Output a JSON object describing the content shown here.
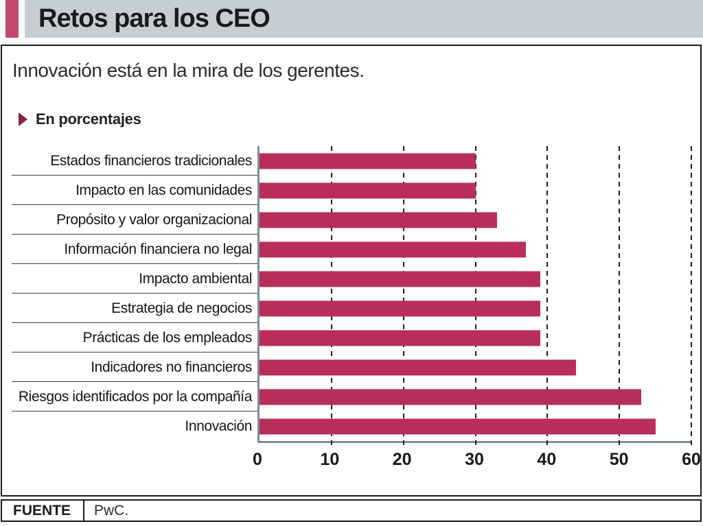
{
  "header": {
    "title": "Retos para los CEO"
  },
  "subtitle": "Innovación está en la mira de los gerentes.",
  "legend": {
    "label": "En porcentajes"
  },
  "chart_data": {
    "type": "bar",
    "orientation": "horizontal",
    "title": "Retos para los CEO",
    "subtitle": "Innovación está en la mira de los gerentes.",
    "units_note": "En porcentajes",
    "categories": [
      "Estados financieros tradicionales",
      "Impacto en las comunidades",
      "Propósito y valor organizacional",
      "Información financiera no legal",
      "Impacto ambiental",
      "Estrategia de negocios",
      "Prácticas de los empleados",
      "Indicadores no financieros",
      "Riesgos identificados por la compañía",
      "Innovación"
    ],
    "values": [
      30,
      30,
      33,
      37,
      39,
      39,
      39,
      44,
      53,
      55
    ],
    "xlim": [
      0,
      60
    ],
    "xticks": [
      0,
      10,
      20,
      30,
      40,
      50,
      60
    ],
    "grid": "dashed-vertical",
    "legend_position": "none",
    "xlabel": "",
    "ylabel": ""
  },
  "footer": {
    "source_label": "FUENTE",
    "source_value": "PwC."
  },
  "colors": {
    "bar-color": "#b92d5d",
    "accent-square": "#c2496c",
    "bullet-color": "#8c2043",
    "band-gray": "#c7ced3",
    "axis-gray": "#7d8e98"
  }
}
